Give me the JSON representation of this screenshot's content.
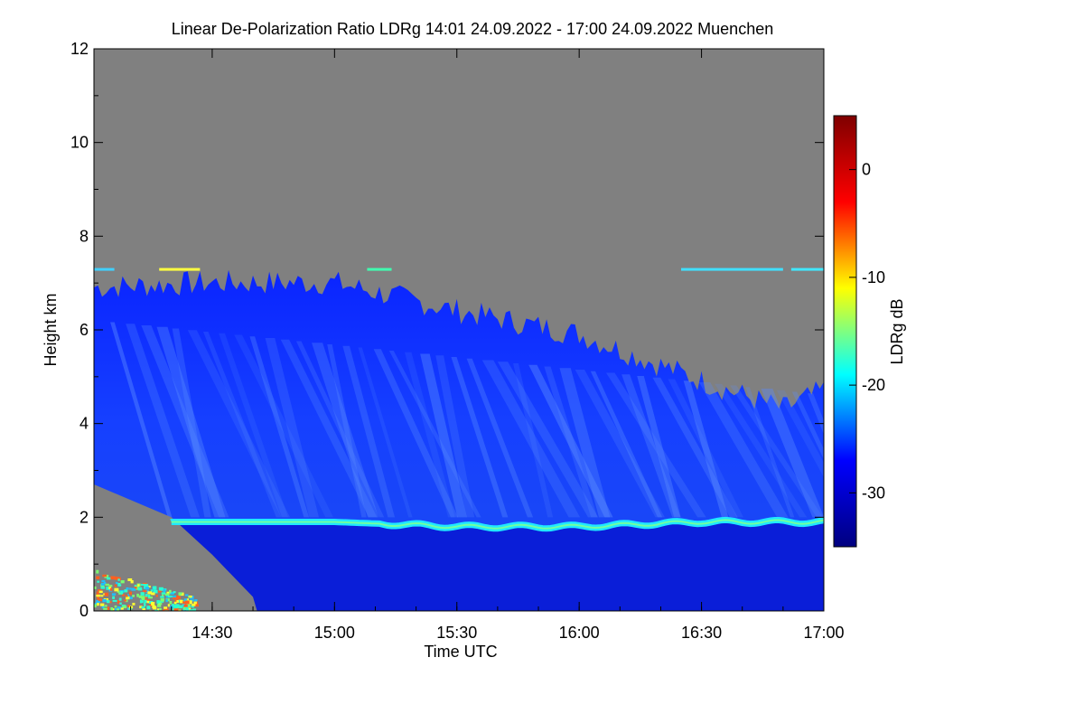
{
  "chart_data": {
    "type": "heatmap",
    "title": "Linear De-Polarization Ratio LDRg   14:01 24.09.2022 - 17:00 24.09.2022 Muenchen",
    "xlabel": "Time UTC",
    "ylabel": "Height km",
    "xlim": [
      "14:01",
      "17:00"
    ],
    "ylim": [
      0,
      12
    ],
    "x_ticks": [
      "14:30",
      "15:00",
      "15:30",
      "16:00",
      "16:30",
      "17:00"
    ],
    "y_ticks": [
      "0",
      "2",
      "4",
      "6",
      "8",
      "10",
      "12"
    ],
    "colorbar": {
      "label": "LDRg dB",
      "range": [
        -35,
        5
      ],
      "ticks": [
        "0",
        "-10",
        "-20",
        "-30"
      ],
      "colormap": [
        "#00007f",
        "#0000ff",
        "#00ffff",
        "#ffff00",
        "#ff0000",
        "#7f0000"
      ]
    },
    "no_data_color": "#808080",
    "features": [
      {
        "name": "cloud_layer_top_km",
        "x": [
          "14:01",
          "14:30",
          "15:00",
          "15:30",
          "16:00",
          "16:30",
          "16:50",
          "17:00"
        ],
        "y": [
          6.8,
          6.9,
          6.9,
          6.3,
          5.8,
          4.8,
          4.2,
          4.6
        ]
      },
      {
        "name": "melting_layer_km",
        "x": [
          "14:20",
          "15:00",
          "15:30",
          "16:00",
          "16:30",
          "17:00"
        ],
        "y": [
          1.9,
          1.9,
          1.8,
          1.8,
          1.9,
          1.9
        ]
      },
      {
        "name": "dry_air_bottom_km",
        "x": [
          "14:01",
          "14:20",
          "14:30",
          "14:40"
        ],
        "y": [
          2.7,
          2.0,
          1.2,
          0.3
        ]
      }
    ]
  }
}
